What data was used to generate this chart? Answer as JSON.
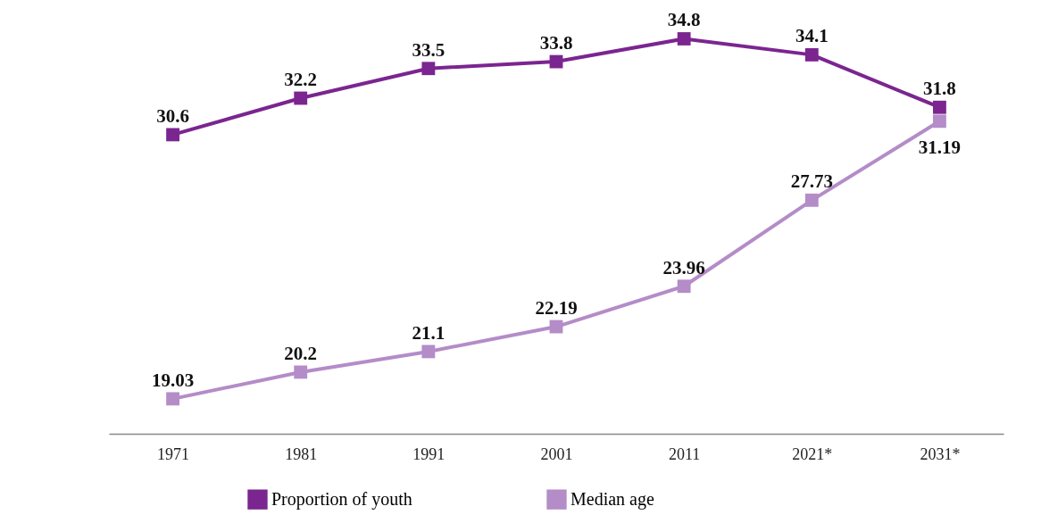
{
  "chart_data": {
    "type": "line",
    "categories": [
      "1971",
      "1981",
      "1991",
      "2001",
      "2011",
      "2021*",
      "2031*"
    ],
    "series": [
      {
        "name": "Proportion of youth",
        "color": "#7b2590",
        "values": [
          30.6,
          32.2,
          33.5,
          33.8,
          34.8,
          34.1,
          31.8
        ]
      },
      {
        "name": "Median age",
        "color": "#b48cc8",
        "values": [
          19.03,
          20.2,
          21.1,
          22.19,
          23.96,
          27.73,
          31.19
        ]
      }
    ],
    "ylim": [
      17.5,
      36.5
    ],
    "tick_labels": "x",
    "data_labels": true,
    "marker": "square",
    "line_style": "solid",
    "grid": false,
    "legend": "bottom"
  }
}
